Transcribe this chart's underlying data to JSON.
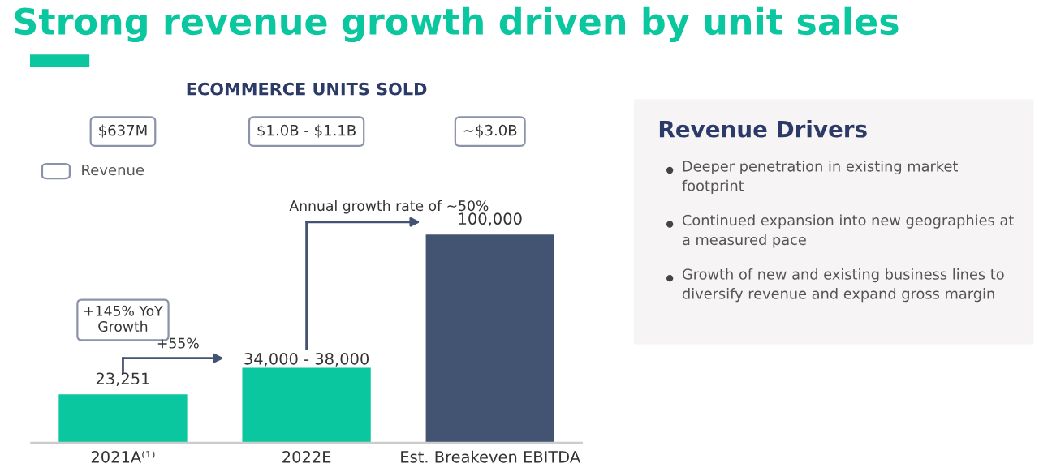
{
  "chart_data": [
    {
      "type": "bar",
      "title": "Strong revenue growth driven by unit sales",
      "subtitle": "ECOMMERCE UNITS SOLD",
      "categories": [
        "2021A⁽¹⁾",
        "2022E",
        "Est. Breakeven EBITDA"
      ],
      "values": [
        23251,
        36000,
        100000
      ],
      "value_labels": [
        "23,251",
        null,
        "100,000"
      ],
      "colors": [
        "#0bc7a0",
        "#0bc7a0",
        "#435372"
      ],
      "tick_labels": "x",
      "grid": false,
      "legend": false,
      "annotations": [
        "$637M",
        "$1.0B - $1.1B",
        "~$3.0B",
        "Revenue",
        "+145% YoY\nGrowth",
        "+55%",
        "Annual growth rate of ~50%",
        "34,000 - 38,000"
      ]
    },
    {
      "type": "other",
      "title": "Revenue Drivers",
      "annotations": [
        "Deeper penetration in existing market\nfootprint",
        "Continued expansion into new geographies at\na measured pace",
        "Growth of new and existing business lines to\ndiversify revenue and expand gross margin"
      ]
    }
  ]
}
